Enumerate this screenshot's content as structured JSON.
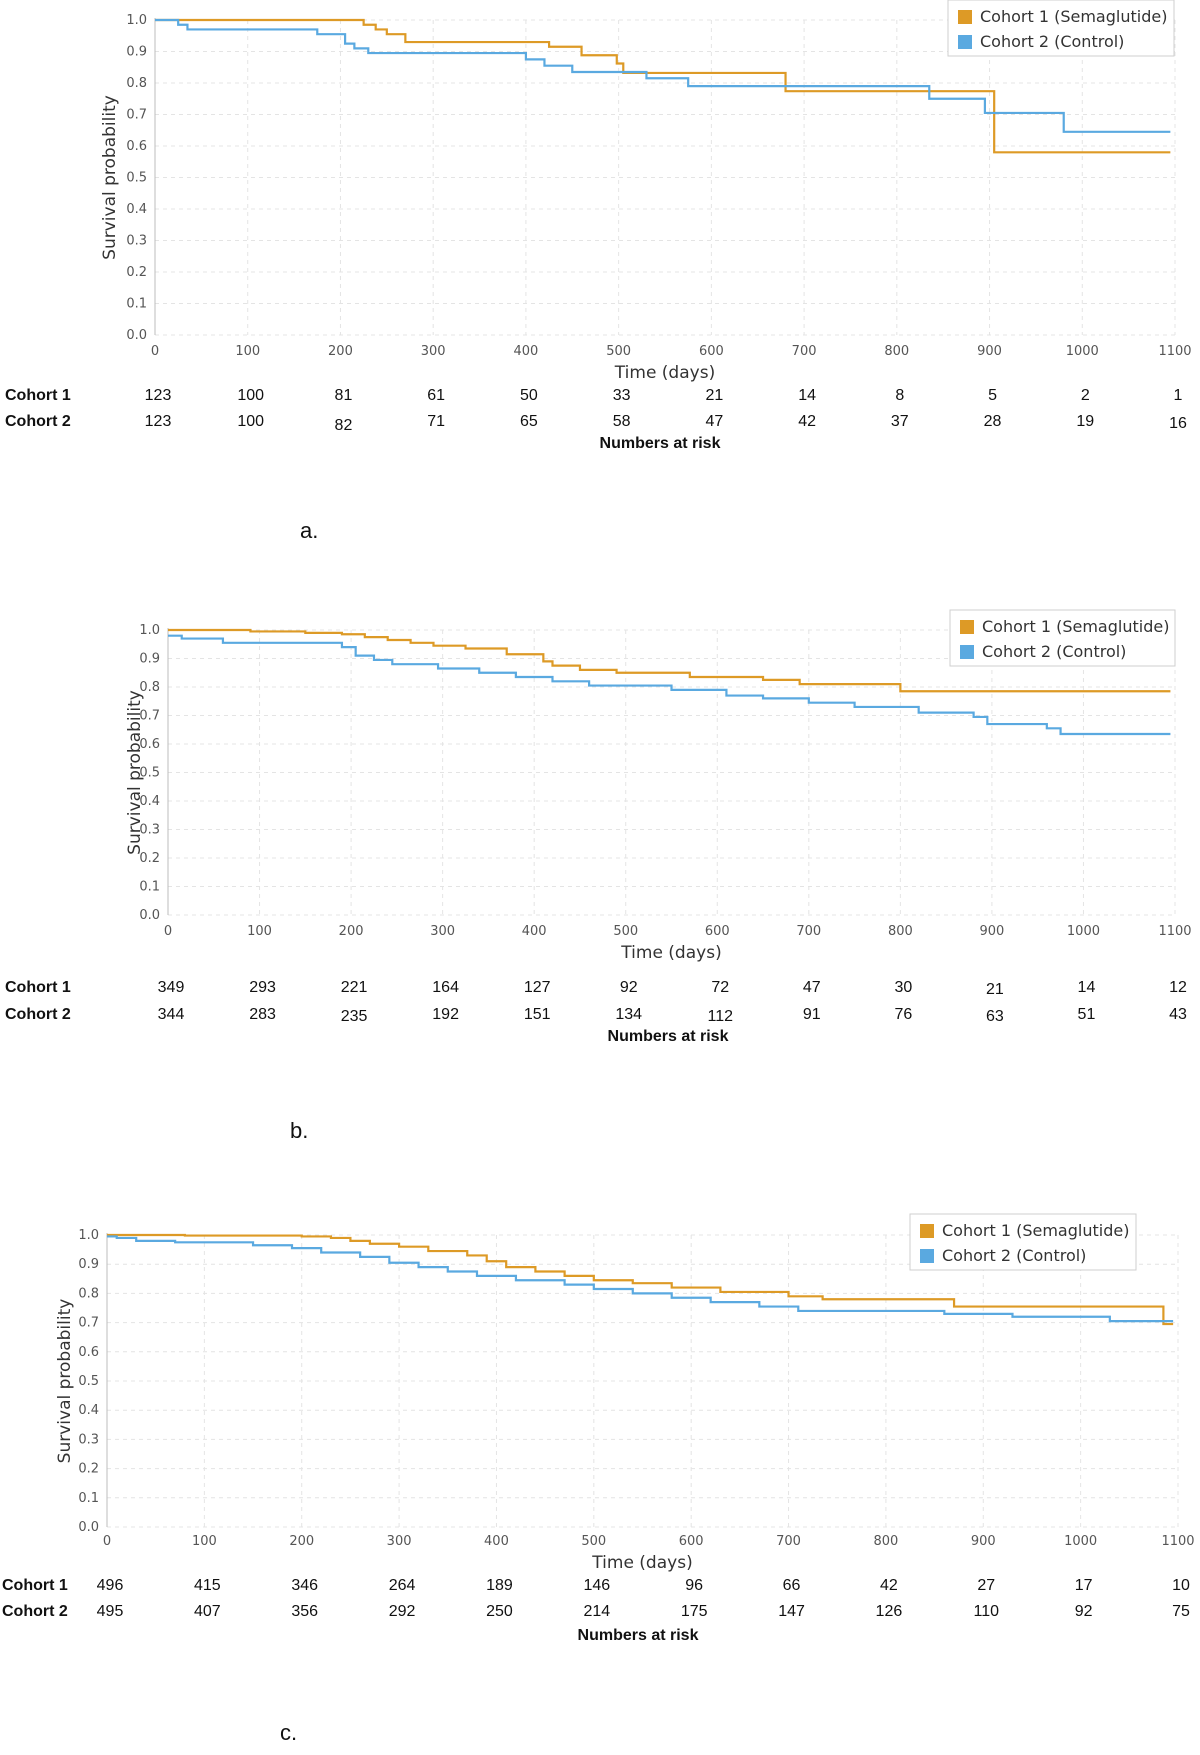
{
  "chart_data": [
    {
      "type": "line",
      "panel_label": "a.",
      "xlabel": "Time (days)",
      "ylabel": "Survival probability",
      "xlim": [
        0,
        1100
      ],
      "ylim": [
        0,
        1.0
      ],
      "x_ticks": [
        "0",
        "100",
        "200",
        "300",
        "400",
        "500",
        "600",
        "700",
        "800",
        "900",
        "1000",
        "1100"
      ],
      "y_ticks": [
        "0.0",
        "0.1",
        "0.2",
        "0.3",
        "0.4",
        "0.5",
        "0.6",
        "0.7",
        "0.8",
        "0.9",
        "1.0"
      ],
      "grid": true,
      "legend_position": "top-right",
      "series": [
        {
          "name": "Cohort 1 (Semaglutide)",
          "color": "#dd9a26",
          "step": true,
          "x": [
            0,
            218,
            225,
            238,
            250,
            270,
            425,
            460,
            498,
            505,
            680,
            905,
            910,
            1095
          ],
          "y": [
            1.0,
            1.0,
            0.985,
            0.97,
            0.955,
            0.93,
            0.915,
            0.888,
            0.862,
            0.832,
            0.774,
            0.58,
            0.58,
            0.58
          ]
        },
        {
          "name": "Cohort 2 (Control)",
          "color": "#5aa9e0",
          "step": true,
          "x": [
            0,
            25,
            35,
            175,
            205,
            215,
            230,
            400,
            420,
            450,
            530,
            575,
            680,
            835,
            895,
            980,
            1095
          ],
          "y": [
            1.0,
            0.985,
            0.97,
            0.955,
            0.925,
            0.91,
            0.895,
            0.875,
            0.855,
            0.835,
            0.815,
            0.79,
            0.79,
            0.75,
            0.705,
            0.645,
            0.645
          ]
        }
      ],
      "risk_table": {
        "title": "Numbers at risk",
        "rows": [
          {
            "label": "Cohort 1",
            "values": [
              "123",
              "100",
              "81",
              "61",
              "50",
              "33",
              "21",
              "14",
              "8",
              "5",
              "2",
              "1"
            ]
          },
          {
            "label": "Cohort 2",
            "values": [
              "123",
              "100",
              "82",
              "71",
              "65",
              "58",
              "47",
              "42",
              "37",
              "28",
              "19",
              "16"
            ]
          }
        ]
      }
    },
    {
      "type": "line",
      "panel_label": "b.",
      "xlabel": "Time (days)",
      "ylabel": "Survival probability",
      "xlim": [
        0,
        1100
      ],
      "ylim": [
        0,
        1.0
      ],
      "x_ticks": [
        "0",
        "100",
        "200",
        "300",
        "400",
        "500",
        "600",
        "700",
        "800",
        "900",
        "1000",
        "1100"
      ],
      "y_ticks": [
        "0.0",
        "0.1",
        "0.2",
        "0.3",
        "0.4",
        "0.5",
        "0.6",
        "0.7",
        "0.8",
        "0.9",
        "1.0"
      ],
      "grid": true,
      "legend_position": "top-right",
      "series": [
        {
          "name": "Cohort 1 (Semaglutide)",
          "color": "#dd9a26",
          "step": true,
          "x": [
            0,
            90,
            150,
            190,
            215,
            240,
            265,
            290,
            325,
            370,
            410,
            420,
            450,
            490,
            570,
            650,
            690,
            800,
            1095
          ],
          "y": [
            1.0,
            0.995,
            0.99,
            0.985,
            0.975,
            0.965,
            0.955,
            0.945,
            0.935,
            0.915,
            0.89,
            0.875,
            0.86,
            0.85,
            0.835,
            0.825,
            0.81,
            0.785,
            0.785
          ]
        },
        {
          "name": "Cohort 2 (Control)",
          "color": "#5aa9e0",
          "step": true,
          "x": [
            0,
            15,
            60,
            190,
            205,
            225,
            245,
            295,
            340,
            380,
            420,
            460,
            550,
            610,
            650,
            700,
            750,
            820,
            880,
            895,
            960,
            975,
            1095
          ],
          "y": [
            0.98,
            0.97,
            0.955,
            0.94,
            0.91,
            0.895,
            0.88,
            0.865,
            0.85,
            0.835,
            0.82,
            0.805,
            0.79,
            0.77,
            0.76,
            0.745,
            0.73,
            0.71,
            0.695,
            0.67,
            0.655,
            0.635,
            0.635
          ]
        }
      ],
      "risk_table": {
        "title": "Numbers at risk",
        "rows": [
          {
            "label": "Cohort 1",
            "values": [
              "349",
              "293",
              "221",
              "164",
              "127",
              "92",
              "72",
              "47",
              "30",
              "21",
              "14",
              "12"
            ]
          },
          {
            "label": "Cohort 2",
            "values": [
              "344",
              "283",
              "235",
              "192",
              "151",
              "134",
              "112",
              "91",
              "76",
              "63",
              "51",
              "43"
            ]
          }
        ]
      }
    },
    {
      "type": "line",
      "panel_label": "c.",
      "xlabel": "Time (days)",
      "ylabel": "Survival probability",
      "xlim": [
        0,
        1100
      ],
      "ylim": [
        0,
        1.0
      ],
      "x_ticks": [
        "0",
        "100",
        "200",
        "300",
        "400",
        "500",
        "600",
        "700",
        "800",
        "900",
        "1000",
        "1100"
      ],
      "y_ticks": [
        "0.0",
        "0.1",
        "0.2",
        "0.3",
        "0.4",
        "0.5",
        "0.6",
        "0.7",
        "0.8",
        "0.9",
        "1.0"
      ],
      "grid": true,
      "legend_position": "top-right",
      "series": [
        {
          "name": "Cohort 1 (Semaglutide)",
          "color": "#dd9a26",
          "step": true,
          "x": [
            0,
            80,
            200,
            230,
            250,
            270,
            300,
            330,
            370,
            390,
            410,
            440,
            470,
            500,
            540,
            580,
            630,
            700,
            735,
            870,
            1085,
            1095
          ],
          "y": [
            1.0,
            0.998,
            0.995,
            0.99,
            0.98,
            0.97,
            0.96,
            0.945,
            0.93,
            0.91,
            0.89,
            0.875,
            0.86,
            0.845,
            0.835,
            0.82,
            0.805,
            0.79,
            0.78,
            0.755,
            0.695,
            0.695
          ]
        },
        {
          "name": "Cohort 2 (Control)",
          "color": "#5aa9e0",
          "step": true,
          "x": [
            0,
            10,
            30,
            70,
            150,
            190,
            220,
            260,
            290,
            320,
            350,
            380,
            420,
            470,
            500,
            540,
            580,
            620,
            670,
            710,
            860,
            930,
            1030,
            1095
          ],
          "y": [
            0.995,
            0.99,
            0.98,
            0.975,
            0.965,
            0.955,
            0.94,
            0.925,
            0.905,
            0.89,
            0.875,
            0.86,
            0.845,
            0.83,
            0.815,
            0.8,
            0.785,
            0.77,
            0.755,
            0.74,
            0.73,
            0.72,
            0.705,
            0.705
          ]
        }
      ],
      "risk_table": {
        "title": "Numbers at risk",
        "rows": [
          {
            "label": "Cohort 1",
            "values": [
              "496",
              "415",
              "346",
              "264",
              "189",
              "146",
              "96",
              "66",
              "42",
              "27",
              "17",
              "10"
            ]
          },
          {
            "label": "Cohort 2",
            "values": [
              "495",
              "407",
              "356",
              "292",
              "250",
              "214",
              "175",
              "147",
              "126",
              "110",
              "92",
              "75"
            ]
          }
        ]
      }
    }
  ]
}
